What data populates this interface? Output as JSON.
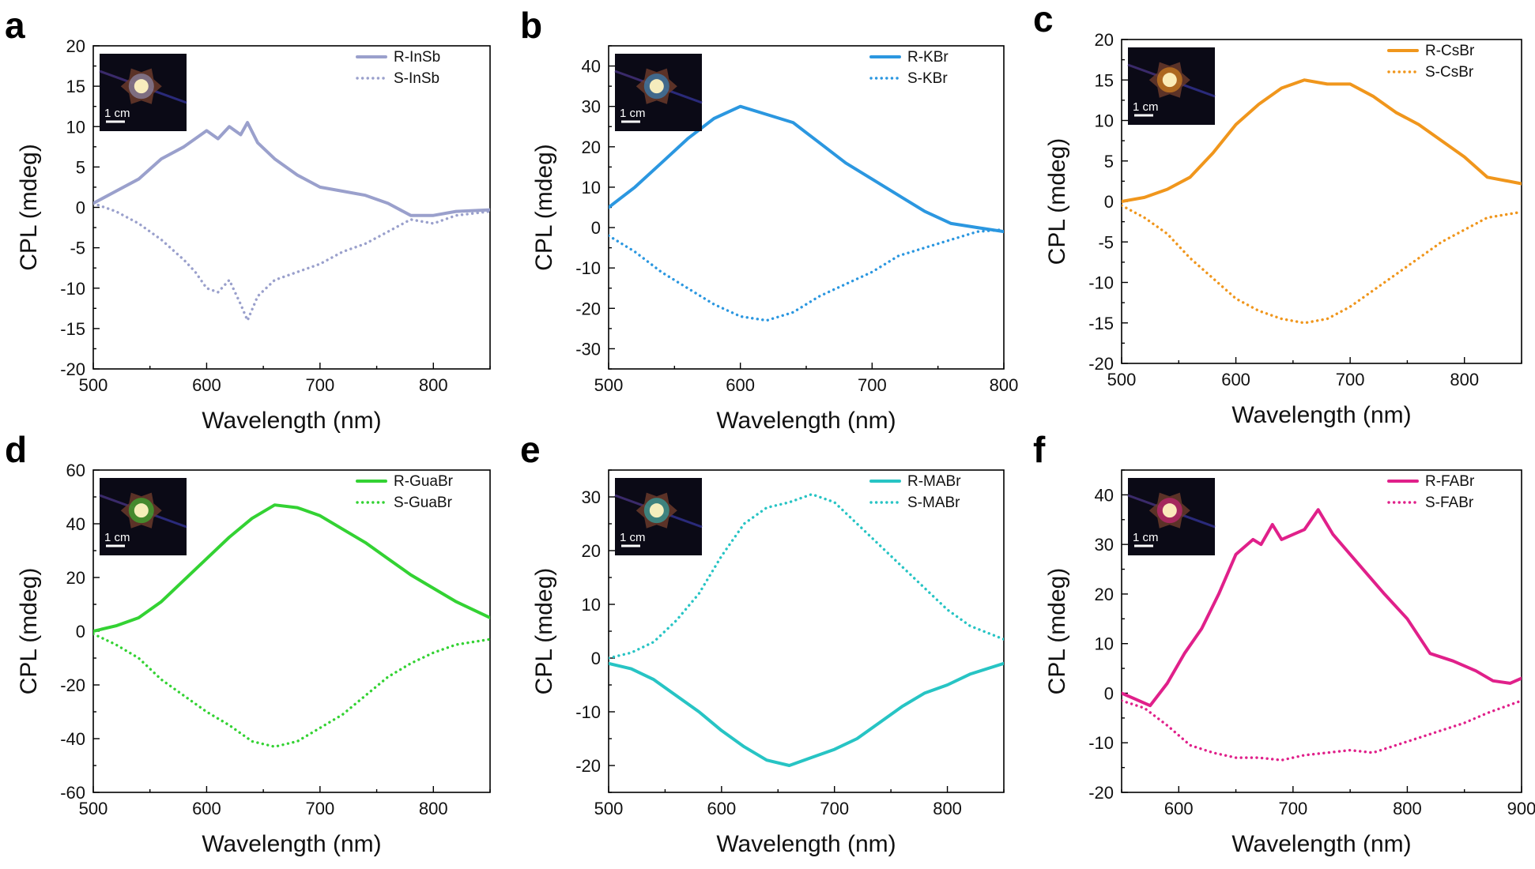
{
  "chart_data": [
    {
      "panel": "a",
      "type": "line",
      "xlabel": "Wavelength (nm)",
      "ylabel": "CPL (mdeg)",
      "xlim": [
        500,
        850
      ],
      "ylim": [
        -20,
        20
      ],
      "xticks": [
        500,
        600,
        700,
        800
      ],
      "yticks": [
        -20,
        -15,
        -10,
        -5,
        0,
        5,
        10,
        15,
        20
      ],
      "color": "#9aa0cc",
      "inset_scale": "1 cm",
      "series": [
        {
          "name": "R-InSb",
          "style": "solid",
          "x": [
            500,
            520,
            540,
            560,
            580,
            600,
            610,
            620,
            630,
            636,
            645,
            660,
            680,
            700,
            720,
            740,
            760,
            780,
            800,
            820,
            850
          ],
          "y": [
            0.5,
            2,
            3.5,
            6,
            7.5,
            9.5,
            8.5,
            10,
            9,
            10.5,
            8,
            6,
            4,
            2.5,
            2,
            1.5,
            0.5,
            -1,
            -1,
            -0.5,
            -0.3
          ]
        },
        {
          "name": "S-InSb",
          "style": "dotted",
          "x": [
            500,
            520,
            540,
            560,
            580,
            590,
            600,
            610,
            620,
            630,
            636,
            645,
            660,
            680,
            700,
            720,
            740,
            760,
            780,
            800,
            820,
            850
          ],
          "y": [
            0.5,
            -0.5,
            -2,
            -4,
            -6.5,
            -8,
            -10,
            -10.5,
            -9,
            -12,
            -14,
            -11,
            -9,
            -8,
            -7,
            -5.5,
            -4.5,
            -3,
            -1.5,
            -2,
            -1,
            -0.5
          ]
        }
      ]
    },
    {
      "panel": "b",
      "type": "line",
      "xlabel": "Wavelength (nm)",
      "ylabel": "CPL (mdeg)",
      "xlim": [
        500,
        800
      ],
      "ylim": [
        -35,
        45
      ],
      "xticks": [
        500,
        600,
        700,
        800
      ],
      "yticks": [
        -30,
        -20,
        -10,
        0,
        10,
        20,
        30,
        40
      ],
      "color": "#2b97e0",
      "inset_scale": "1 cm",
      "series": [
        {
          "name": "R-KBr",
          "style": "solid",
          "x": [
            500,
            520,
            540,
            560,
            580,
            600,
            620,
            640,
            660,
            680,
            700,
            720,
            740,
            760,
            780,
            800
          ],
          "y": [
            5,
            10,
            16,
            22,
            27,
            30,
            28,
            26,
            21,
            16,
            12,
            8,
            4,
            1,
            0,
            -1
          ]
        },
        {
          "name": "S-KBr",
          "style": "dotted",
          "x": [
            500,
            520,
            540,
            560,
            580,
            600,
            620,
            640,
            660,
            680,
            700,
            720,
            740,
            760,
            780,
            800
          ],
          "y": [
            -2,
            -6,
            -11,
            -15,
            -19,
            -22,
            -23,
            -21,
            -17,
            -14,
            -11,
            -7,
            -5,
            -3,
            -1,
            -0.5
          ]
        }
      ]
    },
    {
      "panel": "c",
      "type": "line",
      "xlabel": "Wavelength (nm)",
      "ylabel": "CPL (mdeg)",
      "xlim": [
        500,
        850
      ],
      "ylim": [
        -20,
        20
      ],
      "xticks": [
        500,
        600,
        700,
        800
      ],
      "yticks": [
        -20,
        -15,
        -10,
        -5,
        0,
        5,
        10,
        15,
        20
      ],
      "color": "#f0961c",
      "inset_scale": "1 cm",
      "series": [
        {
          "name": "R-CsBr",
          "style": "solid",
          "x": [
            500,
            520,
            540,
            560,
            580,
            600,
            620,
            640,
            660,
            680,
            700,
            720,
            740,
            760,
            780,
            800,
            820,
            850
          ],
          "y": [
            0,
            0.5,
            1.5,
            3,
            6,
            9.5,
            12,
            14,
            15,
            14.5,
            14.5,
            13,
            11,
            9.5,
            7.5,
            5.5,
            3,
            2.2
          ]
        },
        {
          "name": "S-CsBr",
          "style": "dotted",
          "x": [
            500,
            520,
            540,
            560,
            580,
            600,
            620,
            640,
            660,
            680,
            700,
            720,
            740,
            760,
            780,
            800,
            820,
            850
          ],
          "y": [
            -0.5,
            -2,
            -4,
            -7,
            -9.5,
            -12,
            -13.5,
            -14.5,
            -15,
            -14.5,
            -13,
            -11,
            -9,
            -7,
            -5,
            -3.5,
            -2,
            -1.3
          ]
        }
      ]
    },
    {
      "panel": "d",
      "type": "line",
      "xlabel": "Wavelength (nm)",
      "ylabel": "CPL (mdeg)",
      "xlim": [
        500,
        850
      ],
      "ylim": [
        -60,
        60
      ],
      "xticks": [
        500,
        600,
        700,
        800
      ],
      "yticks": [
        -60,
        -40,
        -20,
        0,
        20,
        40,
        60
      ],
      "color": "#33d233",
      "inset_scale": "1 cm",
      "series": [
        {
          "name": "R-GuaBr",
          "style": "solid",
          "x": [
            500,
            520,
            540,
            560,
            580,
            600,
            620,
            640,
            660,
            680,
            700,
            720,
            740,
            760,
            780,
            800,
            820,
            850
          ],
          "y": [
            0,
            2,
            5,
            11,
            19,
            27,
            35,
            42,
            47,
            46,
            43,
            38,
            33,
            27,
            21,
            16,
            11,
            5
          ]
        },
        {
          "name": "S-GuaBr",
          "style": "dotted",
          "x": [
            500,
            520,
            540,
            560,
            580,
            600,
            620,
            640,
            660,
            680,
            700,
            720,
            740,
            760,
            780,
            800,
            820,
            850
          ],
          "y": [
            -1,
            -5,
            -10,
            -18,
            -24,
            -30,
            -35,
            -41,
            -43,
            -41,
            -36,
            -31,
            -24,
            -17,
            -12,
            -8,
            -5,
            -3
          ]
        }
      ]
    },
    {
      "panel": "e",
      "type": "line",
      "xlabel": "Wavelength (nm)",
      "ylabel": "CPL (mdeg)",
      "xlim": [
        500,
        850
      ],
      "ylim": [
        -25,
        35
      ],
      "xticks": [
        500,
        600,
        700,
        800
      ],
      "yticks": [
        -20,
        -10,
        0,
        10,
        20,
        30
      ],
      "color": "#27c4c4",
      "inset_scale": "1 cm",
      "series": [
        {
          "name": "R-MABr",
          "style": "solid",
          "x": [
            500,
            520,
            540,
            560,
            580,
            600,
            620,
            640,
            660,
            680,
            700,
            720,
            740,
            760,
            780,
            800,
            820,
            850
          ],
          "y": [
            -1,
            -2,
            -4,
            -7,
            -10,
            -13.5,
            -16.5,
            -19,
            -20,
            -18.5,
            -17,
            -15,
            -12,
            -9,
            -6.5,
            -5,
            -3,
            -1
          ]
        },
        {
          "name": "S-MABr",
          "style": "dotted",
          "x": [
            500,
            520,
            540,
            560,
            580,
            600,
            620,
            640,
            660,
            680,
            700,
            720,
            740,
            760,
            780,
            800,
            820,
            850
          ],
          "y": [
            0,
            1,
            3,
            7,
            12,
            19,
            25,
            28,
            29,
            30.5,
            29,
            25,
            21,
            17,
            13,
            9,
            6,
            3.5
          ]
        }
      ]
    },
    {
      "panel": "f",
      "type": "line",
      "xlabel": "Wavelength (nm)",
      "ylabel": "CPL (mdeg)",
      "xlim": [
        550,
        900
      ],
      "ylim": [
        -20,
        45
      ],
      "xticks": [
        600,
        700,
        800,
        900
      ],
      "yticks": [
        -20,
        -10,
        0,
        10,
        20,
        30,
        40
      ],
      "color": "#e0208a",
      "inset_scale": "1 cm",
      "series": [
        {
          "name": "R-FABr",
          "style": "solid",
          "x": [
            550,
            560,
            575,
            590,
            605,
            620,
            635,
            650,
            665,
            672,
            682,
            690,
            700,
            710,
            722,
            735,
            750,
            765,
            780,
            800,
            820,
            840,
            860,
            875,
            890,
            900
          ],
          "y": [
            0,
            -1,
            -2.5,
            2,
            8,
            13,
            20,
            28,
            31,
            30,
            34,
            31,
            32,
            33,
            37,
            32,
            28,
            24,
            20,
            15,
            8,
            6.5,
            4.5,
            2.5,
            2,
            3
          ]
        },
        {
          "name": "S-FABr",
          "style": "dotted",
          "x": [
            550,
            570,
            590,
            610,
            630,
            650,
            670,
            690,
            710,
            730,
            750,
            770,
            790,
            810,
            830,
            850,
            870,
            900
          ],
          "y": [
            -1.5,
            -3,
            -6.5,
            -10.5,
            -12,
            -13,
            -13,
            -13.5,
            -12.5,
            -12,
            -11.5,
            -12,
            -10.5,
            -9,
            -7.5,
            -6,
            -4,
            -1.5
          ]
        }
      ]
    }
  ]
}
